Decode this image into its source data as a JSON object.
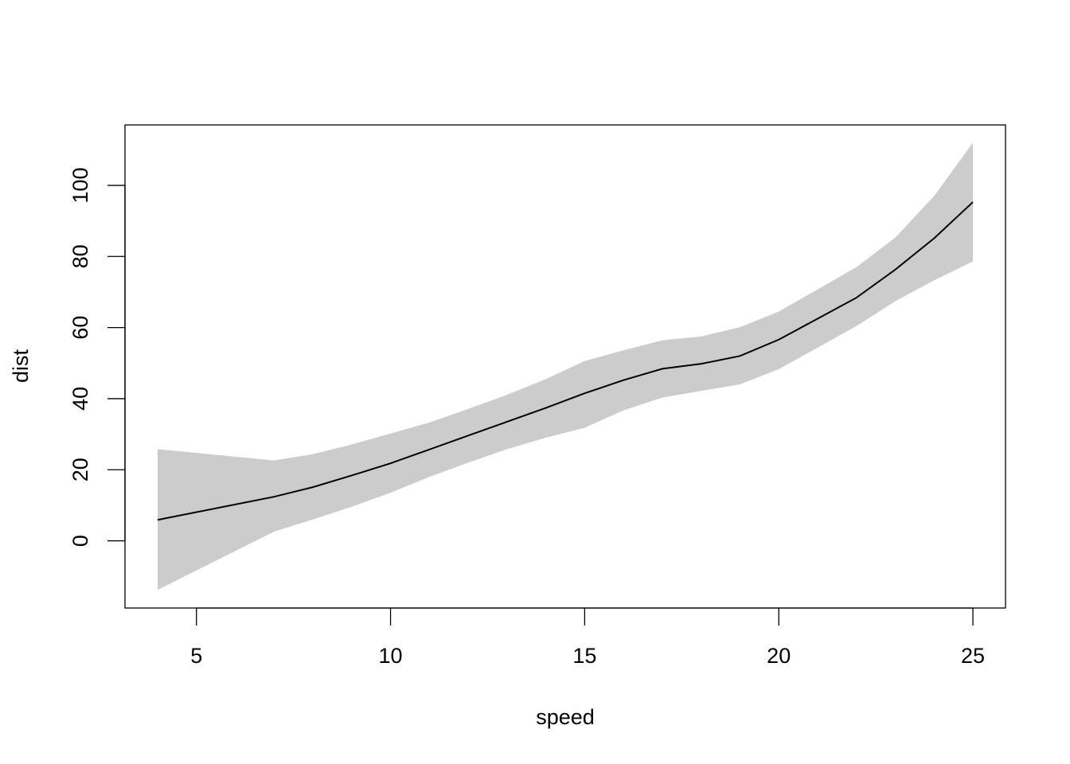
{
  "chart_data": {
    "type": "area",
    "title": "",
    "xlabel": "speed",
    "ylabel": "dist",
    "xlim": [
      3.16,
      25.84
    ],
    "ylim": [
      -18.9,
      117.0
    ],
    "x_ticks": [
      5,
      10,
      15,
      20,
      25
    ],
    "x_tick_labels": [
      "5",
      "10",
      "15",
      "20",
      "25"
    ],
    "y_ticks": [
      0,
      20,
      40,
      60,
      80,
      100
    ],
    "y_tick_labels": [
      "0",
      "20",
      "40",
      "60",
      "80",
      "100"
    ],
    "grid": false,
    "legend": "none",
    "colors": {
      "band": "#cccccc",
      "line": "#000000",
      "frame": "#000000"
    },
    "x": [
      4,
      7,
      8,
      9,
      10,
      11,
      12,
      13,
      14,
      15,
      16,
      17,
      18,
      19,
      20,
      22,
      23,
      24,
      25
    ],
    "series": [
      {
        "values": [
          5.9,
          12.4,
          15.1,
          18.4,
          21.8,
          25.7,
          29.6,
          33.5,
          37.4,
          41.5,
          45.2,
          48.4,
          49.8,
          52.0,
          56.6,
          68.4,
          76.3,
          85.1,
          95.3
        ]
      }
    ],
    "band": {
      "lower": [
        -13.8,
        2.6,
        6.0,
        9.6,
        13.5,
        18.0,
        22.0,
        25.8,
        29.0,
        31.8,
        36.7,
        40.3,
        42.2,
        44.0,
        48.3,
        60.4,
        67.4,
        73.3,
        78.6
      ],
      "upper": [
        25.8,
        22.6,
        24.4,
        27.1,
        30.2,
        33.3,
        37.1,
        41.1,
        45.5,
        50.6,
        53.6,
        56.4,
        57.5,
        60.1,
        64.5,
        77.0,
        85.3,
        97.0,
        112.0
      ]
    }
  }
}
